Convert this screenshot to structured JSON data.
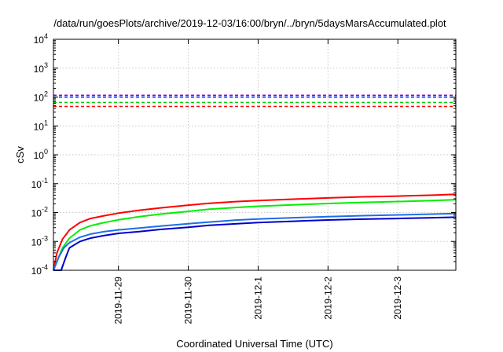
{
  "chart_data": {
    "type": "line",
    "title": "/data/run/goesPlots/archive/2019-12-03/16:00/bryn/../bryn/5daysMarsAccumulated.plot",
    "xlabel": "Coordinated Universal Time (UTC)",
    "ylabel": "cSv",
    "y_scale": "log",
    "ylim_exp": [
      -4,
      4
    ],
    "y_tick_exponents": [
      -4,
      -3,
      -2,
      -1,
      0,
      1,
      2,
      3,
      4
    ],
    "y_tick_base": "10",
    "x_units": "days since 2019-11-28 00:00 UTC",
    "xlim": [
      0.07,
      5.83
    ],
    "x_ticks": [
      {
        "x": 1,
        "label": "2019-11-29"
      },
      {
        "x": 2,
        "label": "2019-11-30"
      },
      {
        "x": 3,
        "label": "2019-12-1"
      },
      {
        "x": 4,
        "label": "2019-12-2"
      },
      {
        "x": 5,
        "label": "2019-12-3"
      }
    ],
    "grid": true,
    "thresholds": [
      {
        "color": "#9400d3",
        "value": 115
      },
      {
        "color": "#0000ff",
        "value": 100
      },
      {
        "color": "#00cc00",
        "value": 65
      },
      {
        "color": "#ff0000",
        "value": 47
      }
    ],
    "series": [
      {
        "color": "#ff0000",
        "x": [
          0.07,
          0.12,
          0.2,
          0.3,
          0.45,
          0.6,
          0.8,
          1.0,
          1.3,
          1.6,
          2.0,
          2.3,
          2.7,
          3.0,
          3.5,
          4.0,
          4.5,
          5.0,
          5.5,
          5.83
        ],
        "values": [
          0.0001,
          0.0004,
          0.0012,
          0.0025,
          0.0045,
          0.0062,
          0.0078,
          0.0095,
          0.012,
          0.0145,
          0.018,
          0.021,
          0.024,
          0.026,
          0.029,
          0.032,
          0.035,
          0.037,
          0.04,
          0.043
        ]
      },
      {
        "color": "#00ee00",
        "x": [
          0.07,
          0.12,
          0.2,
          0.3,
          0.45,
          0.6,
          0.8,
          1.0,
          1.3,
          1.6,
          2.0,
          2.3,
          2.7,
          3.0,
          3.5,
          4.0,
          4.5,
          5.0,
          5.5,
          5.83
        ],
        "values": [
          8e-05,
          0.0002,
          0.0006,
          0.0013,
          0.0025,
          0.0035,
          0.0045,
          0.0056,
          0.0072,
          0.0088,
          0.011,
          0.013,
          0.015,
          0.0165,
          0.0185,
          0.0205,
          0.0225,
          0.024,
          0.026,
          0.028
        ]
      },
      {
        "color": "#1e6ee6",
        "x": [
          0.07,
          0.15,
          0.22,
          0.3,
          0.45,
          0.6,
          0.8,
          1.0,
          1.3,
          1.6,
          2.0,
          2.3,
          2.7,
          3.0,
          3.5,
          4.0,
          4.5,
          5.0,
          5.5,
          5.83
        ],
        "values": [
          0.0001,
          0.0003,
          0.0006,
          0.0009,
          0.0014,
          0.0018,
          0.0022,
          0.0025,
          0.0029,
          0.0034,
          0.0041,
          0.0047,
          0.0055,
          0.006,
          0.0066,
          0.0072,
          0.0078,
          0.0083,
          0.0088,
          0.0093
        ]
      },
      {
        "color": "#0000cc",
        "x": [
          0.07,
          0.12,
          0.18,
          0.25,
          0.3,
          0.45,
          0.6,
          0.8,
          1.0,
          1.3,
          1.6,
          2.0,
          2.3,
          2.7,
          3.0,
          3.5,
          4.0,
          4.5,
          5.0,
          5.5,
          5.83
        ],
        "values": [
          8e-05,
          9e-05,
          0.0001,
          0.0003,
          0.0006,
          0.001,
          0.0013,
          0.0016,
          0.0019,
          0.0022,
          0.0026,
          0.0031,
          0.0036,
          0.0041,
          0.0045,
          0.005,
          0.0055,
          0.0059,
          0.0062,
          0.0066,
          0.0069
        ]
      }
    ]
  }
}
